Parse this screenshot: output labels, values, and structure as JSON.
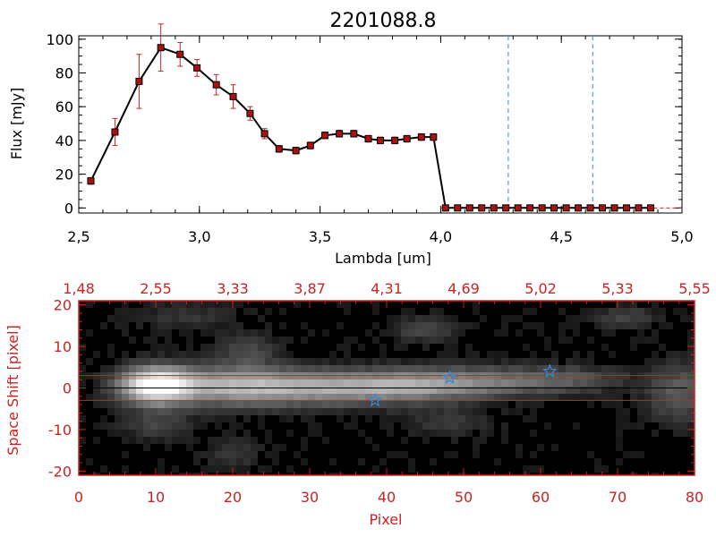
{
  "colors": {
    "accent_red": "#cc2222",
    "line_black": "#000000",
    "marker_red": "#aa1111",
    "dashed_blue": "#3a86d6",
    "star_blue": "#3a86d6"
  },
  "chart_data": [
    {
      "type": "line",
      "title": "2201088.8",
      "xlabel": "Lambda [um]",
      "ylabel": "Flux [mJy]",
      "xlim": [
        2.5,
        5.0
      ],
      "ylim": [
        -3,
        102
      ],
      "x_ticks": [
        "2.5",
        "3.0",
        "3.5",
        "4.0",
        "4.5",
        "5.0"
      ],
      "y_ticks": [
        "0",
        "20",
        "40",
        "60",
        "80",
        "100"
      ],
      "vlines": [
        4.28,
        4.63
      ],
      "series": [
        {
          "x": [
            2.55,
            2.65,
            2.75,
            2.84,
            2.92,
            2.99,
            3.07,
            3.14,
            3.21,
            3.27,
            3.33,
            3.4,
            3.46,
            3.52,
            3.58,
            3.64,
            3.7,
            3.75,
            3.81,
            3.86,
            3.92,
            3.97,
            4.02,
            4.07,
            4.12,
            4.17,
            4.22,
            4.27,
            4.32,
            4.37,
            4.42,
            4.47,
            4.52,
            4.57,
            4.62,
            4.67,
            4.72,
            4.77,
            4.82,
            4.87
          ],
          "y": [
            16,
            45,
            75,
            95,
            91,
            83,
            73,
            66,
            56,
            44,
            35,
            34,
            37,
            43,
            44,
            44,
            41,
            40,
            40,
            41,
            42,
            42,
            0,
            0,
            0,
            0,
            0,
            0,
            0,
            0,
            0,
            0,
            0,
            0,
            0,
            0,
            0,
            0,
            0,
            0
          ],
          "yerr": [
            2,
            8,
            16,
            14,
            7,
            5,
            6,
            7,
            4,
            3,
            2,
            2,
            2,
            2,
            2,
            2,
            2,
            2,
            2,
            2,
            2,
            2,
            0,
            0,
            0,
            0,
            0,
            0,
            0,
            0,
            0,
            0,
            0,
            0,
            0,
            0,
            0,
            0,
            0,
            0
          ]
        }
      ]
    },
    {
      "type": "heatmap",
      "xlabel": "Pixel",
      "ylabel": "Space Shift [pixel]",
      "xlim": [
        0,
        80
      ],
      "ylim": [
        -21,
        21
      ],
      "x_ticks": [
        "0",
        "10",
        "20",
        "30",
        "40",
        "50",
        "60",
        "70",
        "80"
      ],
      "y_ticks": [
        "-20",
        "-10",
        "0",
        "10",
        "20"
      ],
      "top_ticks": [
        "1.48",
        "2.55",
        "3.33",
        "3.87",
        "4.31",
        "4.69",
        "5.02",
        "5.33",
        "5.55"
      ],
      "hlines": [
        3,
        -3
      ],
      "stars": [
        {
          "x": 38.5,
          "y": -3
        },
        {
          "x": 48.2,
          "y": 2.5
        },
        {
          "x": 61.2,
          "y": 4
        }
      ],
      "blobs": [
        {
          "x": 10,
          "y": 0.5,
          "sx": 3.2,
          "sy": 3.0,
          "a": 1.0
        },
        {
          "x": 20,
          "y": 0.5,
          "sx": 6.0,
          "sy": 3.2,
          "a": 0.55
        },
        {
          "x": 32,
          "y": 0.0,
          "sx": 7.0,
          "sy": 2.8,
          "a": 0.45
        },
        {
          "x": 43,
          "y": 0.5,
          "sx": 6.0,
          "sy": 2.6,
          "a": 0.42
        },
        {
          "x": 53,
          "y": 1.5,
          "sx": 6.0,
          "sy": 2.5,
          "a": 0.3
        },
        {
          "x": 64,
          "y": 2.0,
          "sx": 5.0,
          "sy": 2.3,
          "a": 0.2
        },
        {
          "x": 78,
          "y": -1.0,
          "sx": 3.0,
          "sy": 5.0,
          "a": 0.25
        },
        {
          "x": 22,
          "y": 9.0,
          "sx": 2.5,
          "sy": 2.5,
          "a": 0.18
        },
        {
          "x": 45,
          "y": 14.0,
          "sx": 3.0,
          "sy": 2.0,
          "a": 0.18
        },
        {
          "x": 71,
          "y": 17.0,
          "sx": 3.0,
          "sy": 2.0,
          "a": 0.15
        },
        {
          "x": 10,
          "y": -9.0,
          "sx": 3.0,
          "sy": 2.5,
          "a": 0.15
        },
        {
          "x": 20,
          "y": -16.0,
          "sx": 2.5,
          "sy": 2.5,
          "a": 0.12
        },
        {
          "x": 48,
          "y": -8.0,
          "sx": 4.0,
          "sy": 2.5,
          "a": 0.12
        },
        {
          "x": 14,
          "y": 17.0,
          "sx": 5.0,
          "sy": 2.5,
          "a": 0.1
        }
      ]
    }
  ]
}
